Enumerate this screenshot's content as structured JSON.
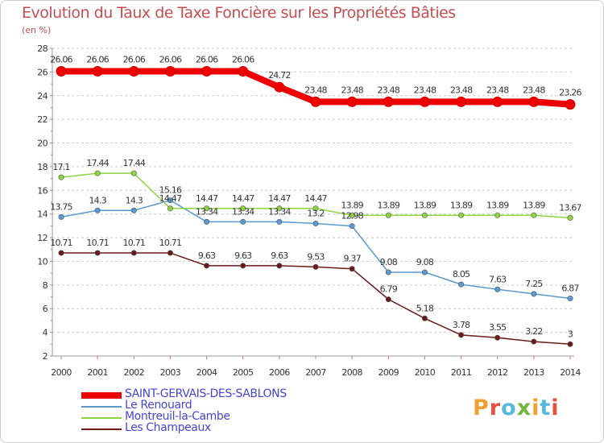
{
  "header": {
    "title": "Evolution du Taux de Taxe Foncière sur les Propriétés Bâties",
    "unit": "(en %)"
  },
  "logo": {
    "text": "Proxiti",
    "colors": [
      "#f0a030",
      "#e85040",
      "#5ab8e0",
      "#70b840",
      "#f0a030",
      "#5ab8e0",
      "#e85040"
    ]
  },
  "chart_data": {
    "type": "line",
    "title": "Evolution du Taux de Taxe Foncière sur les Propriétés Bâties",
    "ylabel": "(en %)",
    "xlabel": "",
    "x": [
      "2000",
      "2001",
      "2002",
      "2003",
      "2004",
      "2005",
      "2006",
      "2007",
      "2008",
      "2009",
      "2010",
      "2011",
      "2012",
      "2013",
      "2014"
    ],
    "ylim": [
      2,
      28
    ],
    "yticks": [
      "2",
      "4",
      "6",
      "8",
      "10",
      "12",
      "14",
      "16",
      "18",
      "20",
      "22",
      "24",
      "26",
      "28"
    ],
    "grid": "horizontal dashed",
    "legend_position": "bottom-left",
    "series": [
      {
        "name": "SAINT-GERVAIS-DES-SABLONS",
        "color": "#ee0000",
        "values": [
          26.06,
          26.06,
          26.06,
          26.06,
          26.06,
          26.06,
          24.72,
          23.48,
          23.48,
          23.48,
          23.48,
          23.48,
          23.48,
          23.48,
          23.26
        ],
        "labels": [
          "26.06",
          "26.06",
          "26.06",
          "26.06",
          "26.06",
          "26.06",
          "24.72",
          "23.48",
          "23.48",
          "23.48",
          "23.48",
          "23.48",
          "23.48",
          "23.48",
          "23.26"
        ]
      },
      {
        "name": "Le Renouard",
        "color": "#5a9ad0",
        "values": [
          13.75,
          14.3,
          14.3,
          15.16,
          13.34,
          13.34,
          13.34,
          13.2,
          12.98,
          9.08,
          9.08,
          8.05,
          7.63,
          7.25,
          6.87
        ],
        "labels": [
          "13.75",
          "14.3",
          "14.3",
          "15.16",
          "13.34",
          "13.34",
          "13.34",
          "13.2",
          "12.98",
          "9.08",
          "9.08",
          "8.05",
          "7.63",
          "7.25",
          "6.87"
        ]
      },
      {
        "name": "Montreuil-la-Cambe",
        "color": "#8ed640",
        "values": [
          17.1,
          17.44,
          17.44,
          14.47,
          14.47,
          14.47,
          14.47,
          14.47,
          13.89,
          13.89,
          13.89,
          13.89,
          13.89,
          13.89,
          13.67
        ],
        "labels": [
          "17.1",
          "17.44",
          "17.44",
          "14.47",
          "14.47",
          "14.47",
          "14.47",
          "14.47",
          "13.89",
          "13.89",
          "13.89",
          "13.89",
          "13.89",
          "13.89",
          "13.67"
        ]
      },
      {
        "name": "Les Champeaux",
        "color": "#6b1a1a",
        "values": [
          10.71,
          10.71,
          10.71,
          10.71,
          9.63,
          9.63,
          9.63,
          9.53,
          9.37,
          6.79,
          5.18,
          3.78,
          3.55,
          3.22,
          3.0
        ],
        "labels": [
          "10.71",
          "10.71",
          "10.71",
          "10.71",
          "9.63",
          "9.63",
          "9.63",
          "9.53",
          "9.37",
          "6.79",
          "5.18",
          "3.78",
          "3.55",
          "3.22",
          "3"
        ]
      }
    ]
  }
}
